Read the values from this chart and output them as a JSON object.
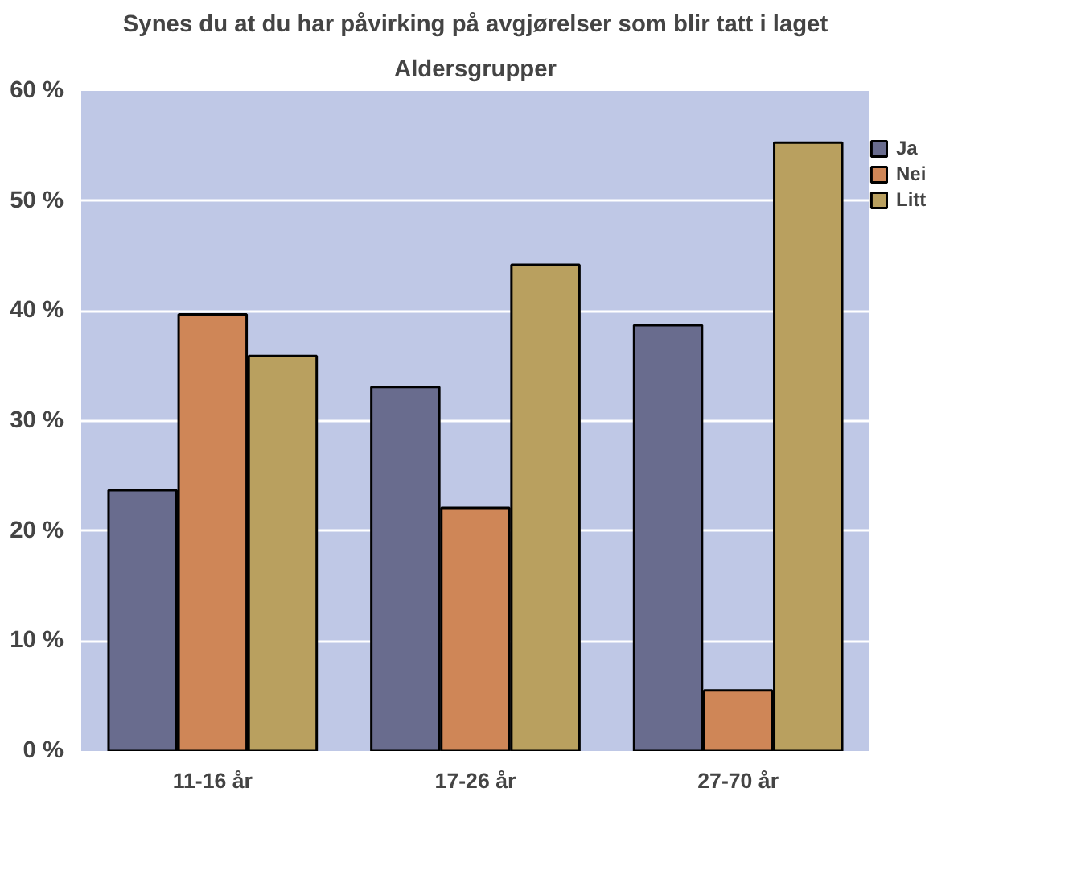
{
  "chart_data": {
    "type": "bar",
    "title": "Synes du at du har påvirking på avgjørelser som blir tatt i laget",
    "subtitle": "Aldersgrupper",
    "categories": [
      "11-16 år",
      "17-26 år",
      "27-70 år"
    ],
    "series": [
      {
        "name": "Ja",
        "color": "#696c8e",
        "values": [
          23.7,
          33.1,
          38.7
        ]
      },
      {
        "name": "Nei",
        "color": "#cf8657",
        "values": [
          39.7,
          22.1,
          5.5
        ]
      },
      {
        "name": "Litt",
        "color": "#b9a05f",
        "values": [
          35.9,
          44.2,
          55.3
        ]
      }
    ],
    "ylim": [
      0,
      60
    ],
    "yticks": [
      {
        "value": 0,
        "label": "0 %"
      },
      {
        "value": 10,
        "label": "10 %"
      },
      {
        "value": 20,
        "label": "20 %"
      },
      {
        "value": 30,
        "label": "30 %"
      },
      {
        "value": 40,
        "label": "40 %"
      },
      {
        "value": 50,
        "label": "50 %"
      },
      {
        "value": 60,
        "label": "60 %"
      }
    ],
    "grid": "y",
    "legend": "top right"
  }
}
